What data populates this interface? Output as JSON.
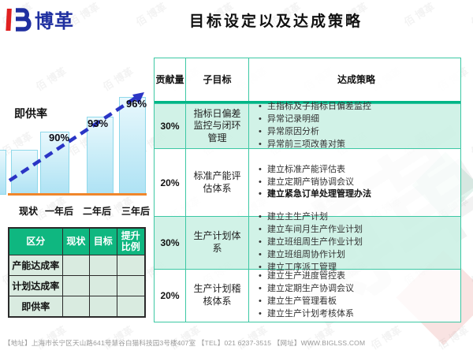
{
  "header": {
    "logo_text": "博革",
    "title": "目标设定以及达成策略"
  },
  "chart": {
    "chart_data": {
      "type": "bar",
      "title": "即供率",
      "categories": [
        "现状",
        "一年后",
        "二年后",
        "三年后"
      ],
      "values": [
        87,
        90,
        93,
        96
      ],
      "value_labels": [
        "",
        "90%",
        "93%",
        "96%"
      ],
      "xlabel": "",
      "ylabel": "",
      "ylim": [
        80,
        100
      ],
      "legend": "none",
      "grid": false,
      "annotations": "blue dashed upward trend arrow over bars; orange baseline; first bar has no data label (value estimated)"
    }
  },
  "left_table": {
    "headers": [
      "区分",
      "现状",
      "目标",
      "提升比例"
    ],
    "rows": [
      {
        "label": "产能达成率",
        "values": [
          "",
          "",
          ""
        ]
      },
      {
        "label": "计划达成率",
        "values": [
          "",
          "",
          ""
        ]
      },
      {
        "label": "即供率",
        "values": [
          "",
          "",
          ""
        ]
      }
    ]
  },
  "right_table": {
    "headers": [
      "贡献量",
      "子目标",
      "达成策略"
    ],
    "rows": [
      {
        "contribution": "30%",
        "sub_goal": "指标日偏差监控与闭环管理",
        "strategies": [
          "主指标及子指标日偏差监控",
          "异常记录明细",
          "异常原因分析",
          "异常前三项改善对策"
        ]
      },
      {
        "contribution": "20%",
        "sub_goal": "标准产能评估体系",
        "strategies": [
          "建立标准产能评估表",
          "建立定期产销协调会议",
          "建立紧急订单处理管理办法"
        ]
      },
      {
        "contribution": "30%",
        "sub_goal": "生产计划体系",
        "strategies": [
          "建立主生产计划",
          "建立车间月生产作业计划",
          "建立班组周生产作业计划",
          "建立班组周协作计划",
          "建立工序派工管理"
        ]
      },
      {
        "contribution": "20%",
        "sub_goal": "生产计划稽核体系",
        "strategies": [
          "建立生产进度管控表",
          "建立定期生产协调会议",
          "建立生产管理看板",
          "建立生产计划考核体系"
        ]
      }
    ]
  },
  "footer": {
    "text": "【地址】上海市长宁区天山路641号慧谷白猫科技园3号楼407室 【TEL】021 6237-3515 【网址】WWW.BIGLSS.COM"
  },
  "watermark": {
    "tile_text": "佰 博革",
    "big_text": "博革"
  },
  "colors": {
    "table_border_teal": "#3cc8a4",
    "header_separator_green": "#00b586",
    "mint_row": "#cdf1e5",
    "left_header_green": "#0fb780",
    "left_cell_green": "#d9ebe0",
    "bar_fill": "#cdeef8",
    "bar_border": "#8fd8ea",
    "baseline_orange": "#f0862b",
    "arrow_blue": "#2b35c5",
    "logo_blue": "#1f2fa0",
    "logo_red": "#e02020"
  }
}
